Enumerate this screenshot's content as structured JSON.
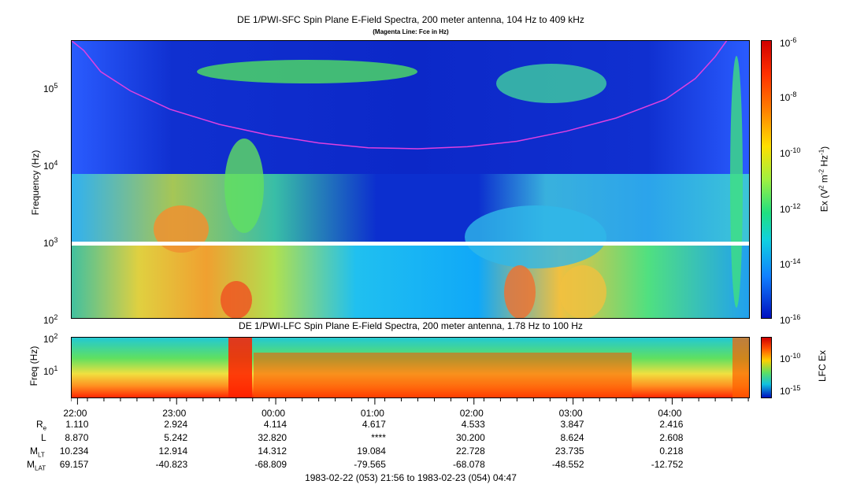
{
  "chart_data": [
    {
      "type": "heatmap",
      "title": "DE 1/PWI-SFC  Spin Plane E-Field Spectra, 200 meter antenna, 104 Hz to 409 kHz",
      "subtitle": "(Magenta Line: Fce in Hz)",
      "ylabel": "Frequency (Hz)",
      "yscale": "log",
      "ylim": [
        100,
        409000
      ],
      "y_ticks": [
        {
          "value": 100,
          "label": "10",
          "exp": "2"
        },
        {
          "value": 1000,
          "label": "10",
          "exp": "3"
        },
        {
          "value": 10000,
          "label": "10",
          "exp": "4"
        },
        {
          "value": 100000,
          "label": "10",
          "exp": "5"
        }
      ],
      "x_range": [
        "21:56",
        "04:47"
      ],
      "colorbar": {
        "label_main": "Ex (V",
        "label_sup1": "2",
        "label_mid": " m",
        "label_sup2": "-2",
        "label_mid2": " Hz",
        "label_sup3": "-1",
        "label_end": ")",
        "scale": "log",
        "range": [
          1e-16,
          1e-06
        ],
        "ticks": [
          {
            "value": 1e-06,
            "label": "10",
            "exp": "-6"
          },
          {
            "value": 1e-08,
            "label": "10",
            "exp": "-8"
          },
          {
            "value": 1e-10,
            "label": "10",
            "exp": "-10"
          },
          {
            "value": 1e-12,
            "label": "10",
            "exp": "-12"
          },
          {
            "value": 1e-14,
            "label": "10",
            "exp": "-14"
          },
          {
            "value": 1e-16,
            "label": "10",
            "exp": "-16"
          }
        ]
      },
      "fce_line": {
        "color": "#e040e0",
        "hours": [
          0.0,
          0.13,
          0.3,
          0.6,
          1.0,
          1.5,
          2.0,
          2.5,
          3.0,
          3.5,
          4.0,
          4.5,
          5.0,
          5.5,
          6.0,
          6.3,
          6.5,
          6.62
        ],
        "freq_hz": [
          409000,
          300000,
          160000,
          90000,
          52000,
          33000,
          24000,
          19000,
          16500,
          16000,
          17000,
          20000,
          27000,
          40000,
          70000,
          130000,
          250000,
          409000
        ]
      }
    },
    {
      "type": "heatmap",
      "title": "DE 1/PWI-LFC  Spin Plane E-Field Spectra, 200 meter antenna, 1.78 Hz to 100 Hz",
      "ylabel": "Freq (Hz)",
      "yscale": "log",
      "ylim": [
        1.78,
        100
      ],
      "y_ticks": [
        {
          "value": 100,
          "label": "10",
          "exp": "2"
        },
        {
          "value": 10,
          "label": "10",
          "exp": "1"
        }
      ],
      "colorbar": {
        "label": "LFC Ex",
        "ticks": [
          {
            "value": 1e-10,
            "label": "10",
            "exp": "-10"
          },
          {
            "value": 1e-15,
            "label": "10",
            "exp": "-15"
          }
        ]
      }
    }
  ],
  "x_axis": {
    "ticks": [
      "22:00",
      "23:00",
      "00:00",
      "01:00",
      "02:00",
      "03:00",
      "04:00"
    ],
    "tick_hours": [
      0.0667,
      1.0667,
      2.0667,
      3.0667,
      4.0667,
      5.0667,
      6.0667
    ],
    "minor_step_hours": 0.1667,
    "footer": "1983-02-22 (053) 21:56 to 1983-02-23 (054) 04:47"
  },
  "ephemeris": [
    {
      "name": "R",
      "sub": "e",
      "values": [
        "1.110",
        "2.924",
        "4.114",
        "4.617",
        "4.533",
        "3.847",
        "2.416"
      ]
    },
    {
      "name": "L",
      "sub": "",
      "values": [
        "8.870",
        "5.242",
        "32.820",
        "****",
        "30.200",
        "8.624",
        "2.608"
      ]
    },
    {
      "name": "M",
      "sub": "LT",
      "values": [
        "10.234",
        "12.914",
        "14.312",
        "19.084",
        "22.728",
        "23.735",
        "0.218"
      ]
    },
    {
      "name": "M",
      "sub": "LAT",
      "values": [
        "69.157",
        "-40.823",
        "-68.809",
        "-79.565",
        "-68.078",
        "-48.552",
        "-12.752"
      ]
    }
  ]
}
